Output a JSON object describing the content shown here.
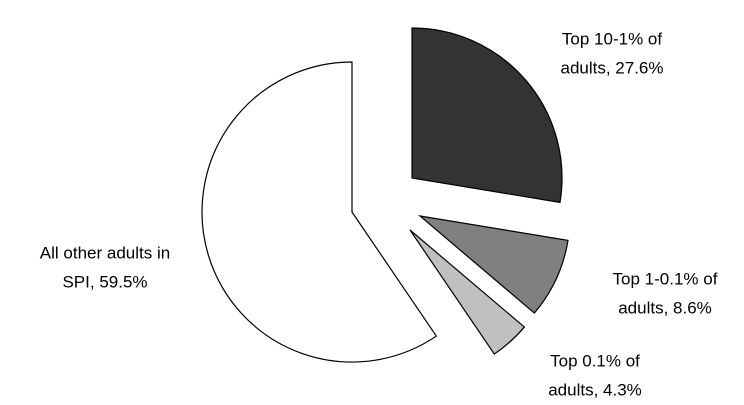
{
  "chart_data": {
    "type": "pie",
    "values": [
      27.6,
      8.6,
      4.3,
      59.5
    ],
    "value_labels": [
      [
        "Top 10-1% of",
        "adults, 27.6%"
      ],
      [
        "Top 1-0.1% of",
        "adults, 8.6%"
      ],
      [
        "Top 0.1% of",
        "adults, 4.3%"
      ],
      [
        "All other adults in",
        "SPI, 59.5%"
      ]
    ],
    "colors": [
      "#333333",
      "#808080",
      "#c0c0c0",
      "#ffffff"
    ]
  }
}
